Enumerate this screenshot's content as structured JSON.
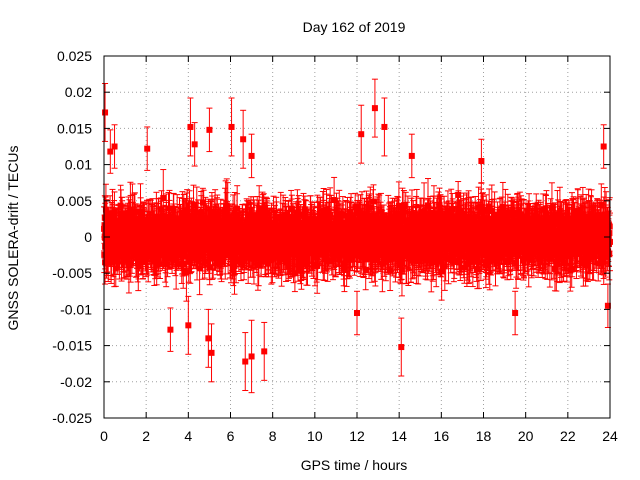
{
  "chart_data": {
    "type": "scatter",
    "title": "Day 162 of 2019",
    "xlabel": "GPS time / hours",
    "ylabel": "GNSS SOLERA-drift / TECUs",
    "xlim": [
      0,
      24
    ],
    "ylim": [
      -0.025,
      0.025
    ],
    "xticks": [
      "0",
      "2",
      "4",
      "6",
      "8",
      "10",
      "12",
      "14",
      "16",
      "18",
      "20",
      "22",
      "24"
    ],
    "yticks": [
      "-0.025",
      "-0.02",
      "-0.015",
      "-0.01",
      "-0.005",
      "0",
      "0.005",
      "0.01",
      "0.015",
      "0.02",
      "0.025"
    ],
    "grid": true,
    "series": [
      {
        "name": "SOLERA drift",
        "color": "#ff0000",
        "marker": "square",
        "error_bars": true,
        "note": "dense cloud of ~3000 points with error bars, roughly uniform in time, spread mostly within ±0.008 TECU",
        "highlighted_points": [
          {
            "x": 0.05,
            "y": 0.0172,
            "err": 0.004
          },
          {
            "x": 0.3,
            "y": 0.0118,
            "err": 0.003
          },
          {
            "x": 0.5,
            "y": 0.0125,
            "err": 0.003
          },
          {
            "x": 2.05,
            "y": 0.0122,
            "err": 0.003
          },
          {
            "x": 4.1,
            "y": 0.0152,
            "err": 0.004
          },
          {
            "x": 4.3,
            "y": 0.0128,
            "err": 0.003
          },
          {
            "x": 5.0,
            "y": 0.0148,
            "err": 0.003
          },
          {
            "x": 6.05,
            "y": 0.0152,
            "err": 0.004
          },
          {
            "x": 6.6,
            "y": 0.0135,
            "err": 0.004
          },
          {
            "x": 7.0,
            "y": 0.0112,
            "err": 0.003
          },
          {
            "x": 12.2,
            "y": 0.0142,
            "err": 0.004
          },
          {
            "x": 12.85,
            "y": 0.0178,
            "err": 0.004
          },
          {
            "x": 13.3,
            "y": 0.0152,
            "err": 0.004
          },
          {
            "x": 14.6,
            "y": 0.0112,
            "err": 0.003
          },
          {
            "x": 17.9,
            "y": 0.0105,
            "err": 0.003
          },
          {
            "x": 23.7,
            "y": 0.0125,
            "err": 0.003
          },
          {
            "x": 0.05,
            "y": -0.0035,
            "err": 0.003
          },
          {
            "x": 3.15,
            "y": -0.0128,
            "err": 0.003
          },
          {
            "x": 4.0,
            "y": -0.0122,
            "err": 0.004
          },
          {
            "x": 4.95,
            "y": -0.014,
            "err": 0.004
          },
          {
            "x": 5.1,
            "y": -0.016,
            "err": 0.004
          },
          {
            "x": 6.7,
            "y": -0.0172,
            "err": 0.004
          },
          {
            "x": 7.0,
            "y": -0.0165,
            "err": 0.005
          },
          {
            "x": 7.6,
            "y": -0.0158,
            "err": 0.004
          },
          {
            "x": 12.0,
            "y": -0.0105,
            "err": 0.003
          },
          {
            "x": 14.1,
            "y": -0.0152,
            "err": 0.004
          },
          {
            "x": 19.5,
            "y": -0.0105,
            "err": 0.003
          },
          {
            "x": 23.9,
            "y": -0.0095,
            "err": 0.003
          }
        ]
      }
    ]
  }
}
